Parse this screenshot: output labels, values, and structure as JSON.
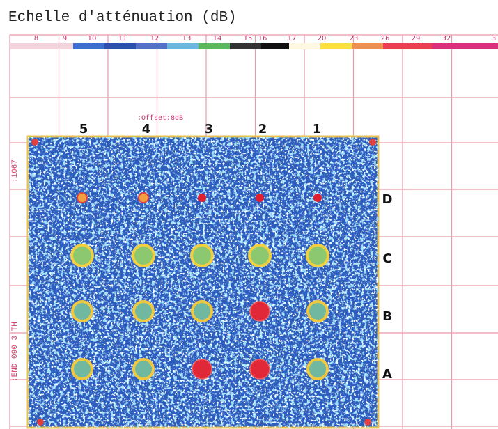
{
  "title": "Echelle d'atténuation (dB)",
  "scale": {
    "labels": [
      "8",
      "9",
      "10",
      "11",
      "12",
      "13",
      "14",
      "15",
      "16",
      "17",
      "20",
      "23",
      "26",
      "29",
      "32",
      "3"
    ]
  },
  "offset_label": ":Offset:8dB",
  "column_labels": [
    "5",
    "4",
    "3",
    "2",
    "1"
  ],
  "row_labels": [
    "D",
    "C",
    "B",
    "A"
  ],
  "side_labels": [
    ":1067",
    ":END 090 3 TH"
  ]
}
